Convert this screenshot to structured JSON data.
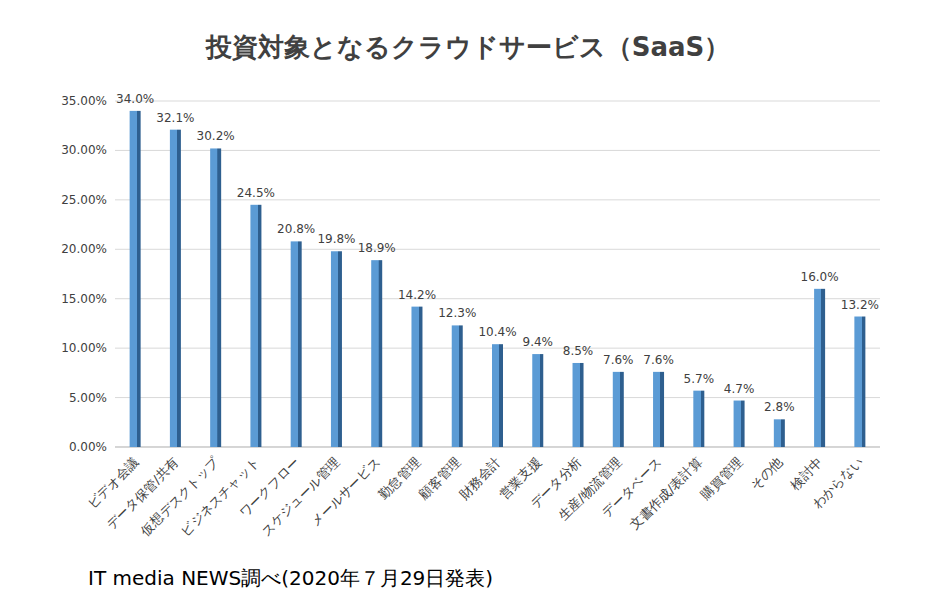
{
  "chart_data": {
    "type": "bar",
    "title": "投資対象となるクラウドサービス（SaaS）",
    "source": "IT media NEWS調べ(2020年７月29日発表)",
    "categories": [
      "ビデオ会議",
      "データ保管/共有",
      "仮想デスクトップ",
      "ビジネスチャット",
      "ワークフロー",
      "スケジュール管理",
      "メールサービス",
      "勤怠管理",
      "顧客管理",
      "財務会計",
      "営業支援",
      "データ分析",
      "生産/物流管理",
      "データベース",
      "文書作成/表計算",
      "購買管理",
      "その他",
      "検討中",
      "わからない"
    ],
    "values": [
      34.0,
      32.1,
      30.2,
      24.5,
      20.8,
      19.8,
      18.9,
      14.2,
      12.3,
      10.4,
      9.4,
      8.5,
      7.6,
      7.6,
      5.7,
      4.7,
      2.8,
      16.0,
      13.2
    ],
    "value_labels": [
      "34.0%",
      "32.1%",
      "30.2%",
      "24.5%",
      "20.8%",
      "19.8%",
      "18.9%",
      "14.2%",
      "12.3%",
      "10.4%",
      "9.4%",
      "8.5%",
      "7.6%",
      "7.6%",
      "5.7%",
      "4.7%",
      "2.8%",
      "16.0%",
      "13.2%"
    ],
    "color": "#5b9bd5",
    "ylim": [
      0,
      35
    ],
    "yticks": [
      {
        "value": 0,
        "label": "0.00%"
      },
      {
        "value": 5,
        "label": "5.00%"
      },
      {
        "value": 10,
        "label": "10.00%"
      },
      {
        "value": 15,
        "label": "15.00%"
      },
      {
        "value": 20,
        "label": "20.00%"
      },
      {
        "value": 25,
        "label": "25.00%"
      },
      {
        "value": 30,
        "label": "30.00%"
      },
      {
        "value": 35,
        "label": "35.00%"
      }
    ],
    "grid": true,
    "data_labels": true
  }
}
